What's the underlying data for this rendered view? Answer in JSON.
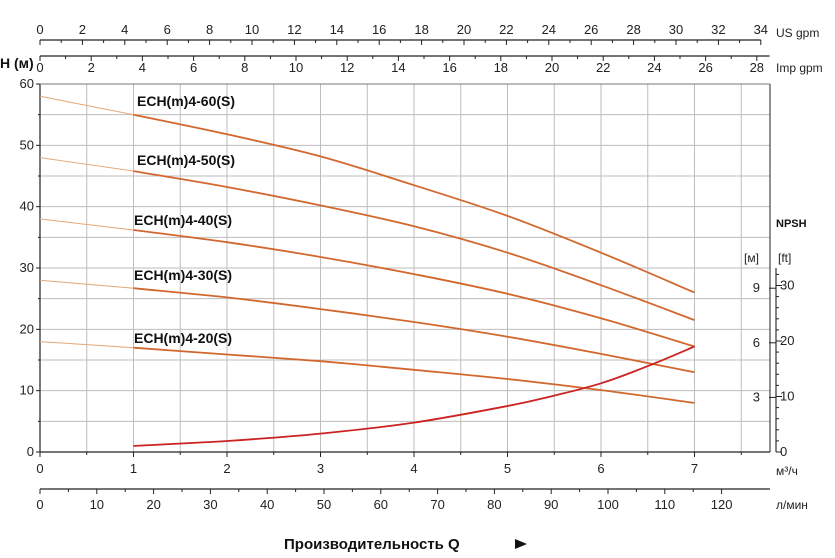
{
  "chart_data": {
    "type": "line",
    "title": "",
    "xlabel": "Производительность Q",
    "ylabel": "H (м)",
    "x_unit": "м³/ч",
    "xlim": [
      0,
      7.8
    ],
    "ylim": [
      0,
      60
    ],
    "grid": true,
    "x_ticks": [
      "0",
      "1",
      "2",
      "3",
      "4",
      "5",
      "6",
      "7"
    ],
    "y_ticks": [
      "0",
      "10",
      "20",
      "30",
      "40",
      "50",
      "60"
    ],
    "top_axis_us": {
      "unit": "US gpm",
      "ticks": [
        "0",
        "2",
        "4",
        "6",
        "8",
        "10",
        "12",
        "14",
        "16",
        "18",
        "20",
        "22",
        "24",
        "26",
        "28",
        "30",
        "32",
        "34"
      ]
    },
    "top_axis_imp": {
      "unit": "Imp gpm",
      "ticks": [
        "0",
        "2",
        "4",
        "6",
        "8",
        "10",
        "12",
        "14",
        "16",
        "18",
        "20",
        "22",
        "24",
        "26",
        "28"
      ]
    },
    "bottom_axis_lmin": {
      "unit": "л/мин",
      "ticks": [
        "0",
        "10",
        "20",
        "30",
        "40",
        "50",
        "60",
        "70",
        "80",
        "90",
        "100",
        "110",
        "120"
      ]
    },
    "npsh_axis": {
      "title": "NPSH",
      "unit_m": "[м]",
      "unit_ft": "[ft]",
      "ticks_m": [
        "3",
        "6",
        "9"
      ],
      "ticks_ft": [
        "0",
        "10",
        "20",
        "30"
      ]
    },
    "series": [
      {
        "name": "ECH(m)4-60(S)",
        "x": [
          0,
          1,
          2,
          3,
          4,
          5,
          6,
          7
        ],
        "y": [
          58,
          55,
          51.8,
          48.2,
          43.5,
          38.5,
          32.5,
          26
        ]
      },
      {
        "name": "ECH(m)4-50(S)",
        "x": [
          0,
          1,
          2,
          3,
          4,
          5,
          6,
          7
        ],
        "y": [
          48,
          45.8,
          43.2,
          40.2,
          36.8,
          32.5,
          27.2,
          21.5
        ]
      },
      {
        "name": "ECH(m)4-40(S)",
        "x": [
          0,
          1,
          2,
          3,
          4,
          5,
          6,
          7
        ],
        "y": [
          38,
          36.2,
          34.2,
          31.8,
          29,
          25.8,
          21.8,
          17.2
        ]
      },
      {
        "name": "ECH(m)4-30(S)",
        "x": [
          0,
          1,
          2,
          3,
          4,
          5,
          6,
          7
        ],
        "y": [
          28,
          26.7,
          25.2,
          23.3,
          21.2,
          18.8,
          16,
          13
        ]
      },
      {
        "name": "ECH(m)4-20(S)",
        "x": [
          0,
          1,
          2,
          3,
          4,
          5,
          6,
          7
        ],
        "y": [
          18,
          17,
          15.9,
          14.8,
          13.4,
          11.9,
          10.1,
          8
        ]
      },
      {
        "name": "NPSH",
        "x": [
          1,
          2,
          3,
          4,
          5,
          5.5,
          6,
          6.5,
          7
        ],
        "y": [
          1,
          1.8,
          3,
          4.8,
          7.5,
          9.2,
          11.2,
          14,
          17.2
        ]
      }
    ]
  }
}
